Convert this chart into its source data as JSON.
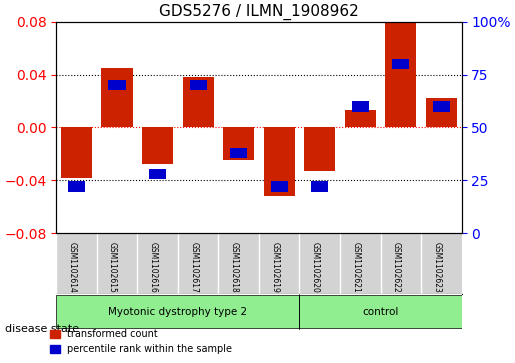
{
  "title": "GDS5276 / ILMN_1908962",
  "samples": [
    "GSM1102614",
    "GSM1102615",
    "GSM1102616",
    "GSM1102617",
    "GSM1102618",
    "GSM1102619",
    "GSM1102620",
    "GSM1102621",
    "GSM1102622",
    "GSM1102623"
  ],
  "transformed_count": [
    -0.038,
    0.045,
    -0.028,
    0.038,
    -0.025,
    -0.052,
    -0.033,
    0.013,
    0.08,
    0.022
  ],
  "percentile_rank": [
    22,
    70,
    28,
    70,
    38,
    22,
    22,
    60,
    80,
    60
  ],
  "groups": [
    {
      "label": "Myotonic dystrophy type 2",
      "start": 0,
      "end": 6,
      "color": "#90EE90"
    },
    {
      "label": "control",
      "start": 6,
      "end": 10,
      "color": "#90EE90"
    }
  ],
  "red_color": "#CC2200",
  "blue_color": "#0000CC",
  "ylim_left": [
    -0.08,
    0.08
  ],
  "ylim_right": [
    0,
    100
  ],
  "yticks_left": [
    -0.08,
    -0.04,
    0,
    0.04,
    0.08
  ],
  "yticks_right": [
    0,
    25,
    50,
    75,
    100
  ],
  "bar_width": 0.35,
  "background_color": "#ffffff",
  "plot_bg_color": "#ffffff",
  "legend_labels": [
    "transformed count",
    "percentile rank within the sample"
  ],
  "disease_state_label": "disease state"
}
